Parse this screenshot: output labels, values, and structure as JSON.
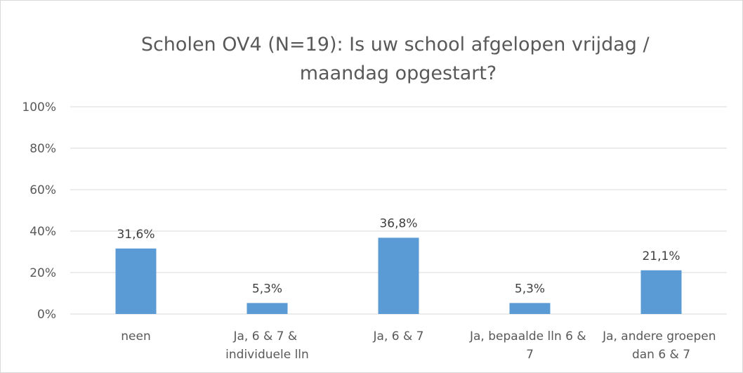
{
  "chart_data": {
    "type": "bar",
    "title": "Scholen OV4 (N=19): Is uw school afgelopen vrijdag / maandag opgestart?",
    "categories": [
      "neen",
      "Ja, 6 & 7 & individuele lln",
      "Ja, 6 & 7",
      "Ja, bepaalde lln 6 & 7",
      "Ja, andere groepen dan 6 & 7"
    ],
    "values": [
      31.6,
      5.3,
      36.8,
      5.3,
      21.1
    ],
    "value_labels": [
      "31,6%",
      "5,3%",
      "36,8%",
      "5,3%",
      "21,1%"
    ],
    "color": "#5b9bd5",
    "ylim": [
      0,
      100
    ],
    "yticks": [
      {
        "value": 0,
        "label": "0%"
      },
      {
        "value": 20,
        "label": "20%"
      },
      {
        "value": 40,
        "label": "40%"
      },
      {
        "value": 60,
        "label": "60%"
      },
      {
        "value": 80,
        "label": "80%"
      },
      {
        "value": 100,
        "label": "100%"
      }
    ],
    "grid": true
  }
}
